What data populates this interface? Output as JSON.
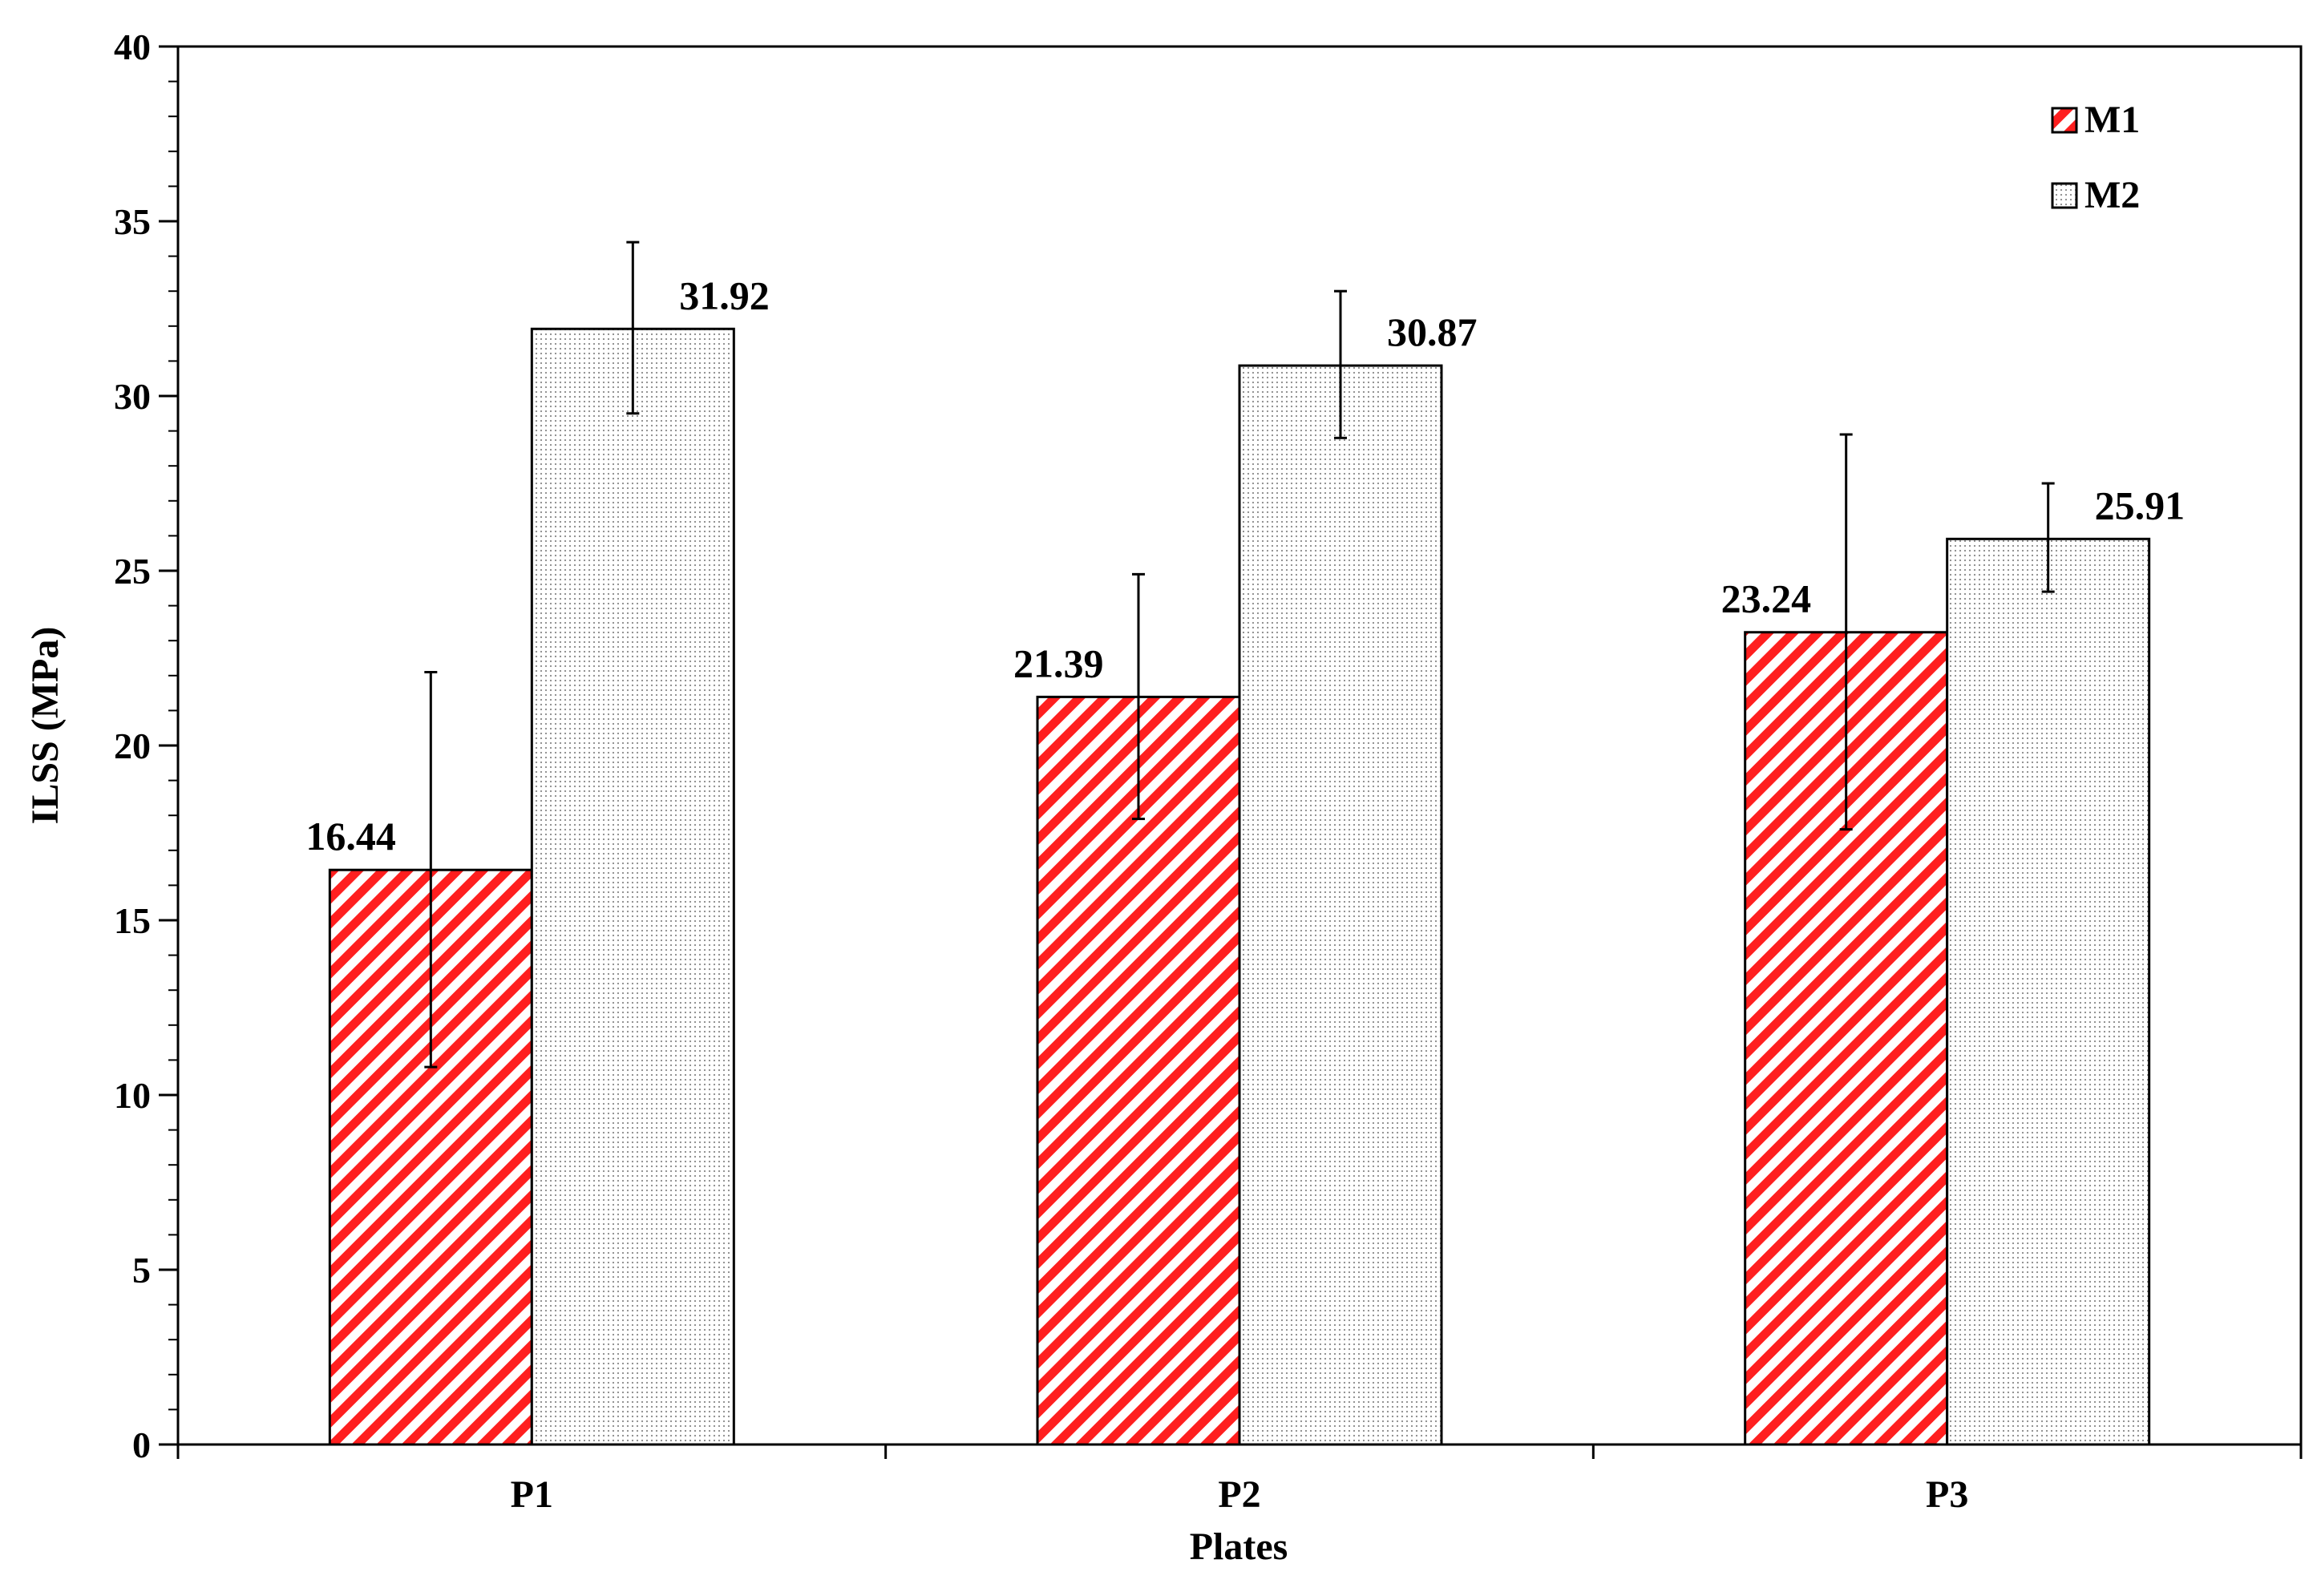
{
  "chart_data": {
    "type": "bar",
    "title": "",
    "xlabel": "Plates",
    "ylabel": "ILSS (MPa)",
    "categories": [
      "P1",
      "P2",
      "P3"
    ],
    "ylim": [
      0,
      40
    ],
    "y_major_ticks": [
      0,
      5,
      10,
      15,
      20,
      25,
      30,
      35,
      40
    ],
    "y_tick_labels": [
      "0",
      "5",
      "10",
      "15",
      "20",
      "25",
      "30",
      "35",
      "40"
    ],
    "y_minor_tick_step": 1,
    "grid": false,
    "legend_position": "top-right",
    "series": [
      {
        "name": "M1",
        "pattern": "red diagonal stripes",
        "color": "#ff1f1f",
        "values": [
          16.44,
          21.39,
          23.24
        ],
        "value_labels": [
          "16.44",
          "21.39",
          "23.24"
        ],
        "error_low": [
          10.8,
          17.9,
          17.6
        ],
        "error_high": [
          22.1,
          24.9,
          28.9
        ]
      },
      {
        "name": "M2",
        "pattern": "fine dots",
        "color": "#888888",
        "values": [
          31.92,
          30.87,
          25.91
        ],
        "value_labels": [
          "31.92",
          "30.87",
          "25.91"
        ],
        "error_low": [
          29.5,
          28.8,
          24.4
        ],
        "error_high": [
          34.4,
          33.0,
          27.5
        ]
      }
    ]
  }
}
